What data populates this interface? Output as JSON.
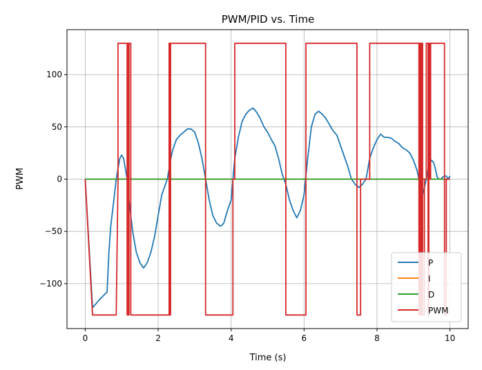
{
  "chart_data": {
    "type": "line",
    "title": "PWM/PID vs. Time",
    "xlabel": "Time (s)",
    "ylabel": "PWM",
    "xlim": [
      -0.5,
      10.5
    ],
    "ylim": [
      -143,
      143
    ],
    "xticks": [
      0,
      2,
      4,
      6,
      8,
      10
    ],
    "yticks": [
      -100,
      -50,
      0,
      50,
      100
    ],
    "xtick_labels": [
      "0",
      "2",
      "4",
      "6",
      "8",
      "10"
    ],
    "ytick_labels": [
      "−100",
      "−50",
      "0",
      "50",
      "100"
    ],
    "grid": true,
    "legend_position": "lower-right",
    "series": [
      {
        "name": "P",
        "color": "#1f77b4",
        "x": [
          0,
          0.2,
          0.4,
          0.6,
          0.65,
          0.7,
          0.8,
          0.85,
          0.9,
          0.95,
          1.0,
          1.05,
          1.1,
          1.15,
          1.2,
          1.3,
          1.4,
          1.5,
          1.6,
          1.7,
          1.75,
          1.8,
          1.9,
          2.0,
          2.1,
          2.2,
          2.25,
          2.3,
          2.35,
          2.4,
          2.5,
          2.6,
          2.7,
          2.8,
          2.9,
          3.0,
          3.1,
          3.2,
          3.3,
          3.4,
          3.5,
          3.6,
          3.7,
          3.75,
          3.8,
          3.9,
          4.0,
          4.05,
          4.1,
          4.2,
          4.3,
          4.4,
          4.5,
          4.6,
          4.7,
          4.8,
          4.9,
          5.0,
          5.1,
          5.2,
          5.3,
          5.4,
          5.5,
          5.6,
          5.7,
          5.8,
          5.9,
          6.0,
          6.1,
          6.2,
          6.3,
          6.4,
          6.5,
          6.6,
          6.7,
          6.8,
          6.9,
          7.0,
          7.1,
          7.2,
          7.3,
          7.4,
          7.5,
          7.6,
          7.7,
          7.8,
          7.9,
          8.0,
          8.1,
          8.2,
          8.3,
          8.4,
          8.5,
          8.6,
          8.7,
          8.8,
          8.9,
          9.0,
          9.1,
          9.15,
          9.2,
          9.25,
          9.3,
          9.35,
          9.4,
          9.45,
          9.5,
          9.55,
          9.6,
          9.65,
          9.7,
          9.75,
          9.8,
          9.85,
          9.9,
          9.95,
          10.0
        ],
        "y": [
          0,
          -123,
          -115,
          -108,
          -70,
          -45,
          -15,
          0,
          10,
          20,
          23,
          20,
          10,
          0,
          -20,
          -50,
          -70,
          -80,
          -85,
          -80,
          -75,
          -70,
          -55,
          -35,
          -15,
          -5,
          0,
          10,
          20,
          28,
          38,
          42,
          45,
          48,
          48,
          45,
          35,
          20,
          0,
          -20,
          -35,
          -42,
          -45,
          -44,
          -42,
          -30,
          -20,
          0,
          20,
          40,
          55,
          62,
          66,
          68,
          64,
          58,
          50,
          45,
          38,
          32,
          20,
          5,
          -5,
          -20,
          -30,
          -37,
          -30,
          -15,
          20,
          50,
          62,
          65,
          62,
          58,
          52,
          46,
          42,
          32,
          22,
          12,
          0,
          -5,
          -8,
          -5,
          0,
          20,
          30,
          38,
          43,
          40,
          40,
          39,
          36,
          34,
          30,
          28,
          25,
          18,
          8,
          0,
          -10,
          -15,
          -8,
          0,
          10,
          16,
          18,
          16,
          10,
          2,
          0,
          0,
          2,
          3,
          3,
          0,
          3
        ]
      },
      {
        "name": "I",
        "color": "#ff7f0e",
        "x": [
          0,
          10
        ],
        "y": [
          0,
          0
        ]
      },
      {
        "name": "D",
        "color": "#2ca02c",
        "x": [
          0,
          10
        ],
        "y": [
          0,
          0
        ]
      },
      {
        "name": "PWM",
        "color": "#d62728",
        "x": [
          0,
          0.2,
          0.85,
          0.9,
          0.9,
          1.15,
          1.15,
          1.17,
          1.17,
          1.19,
          1.19,
          1.2,
          1.2,
          1.25,
          1.25,
          2.3,
          2.3,
          2.32,
          2.32,
          2.34,
          2.34,
          2.35,
          2.35,
          3.3,
          3.3,
          4.05,
          4.05,
          4.1,
          4.1,
          5.5,
          5.5,
          5.55,
          5.55,
          6.05,
          6.05,
          7.45,
          7.45,
          7.55,
          7.55,
          7.8,
          7.8,
          9.15,
          9.15,
          9.17,
          9.17,
          9.2,
          9.2,
          9.22,
          9.22,
          9.25,
          9.25,
          9.3,
          9.3,
          9.35,
          9.35,
          9.4,
          9.4,
          9.42,
          9.42,
          9.45,
          9.45,
          9.47,
          9.47,
          9.5,
          9.5,
          9.55,
          9.55,
          9.85,
          9.85,
          9.9,
          9.9,
          9.95,
          9.95,
          10.0
        ],
        "y": [
          0,
          -130,
          -130,
          0,
          130,
          130,
          -130,
          -130,
          130,
          130,
          -130,
          -130,
          130,
          130,
          -130,
          -130,
          130,
          130,
          -130,
          -130,
          130,
          130,
          130,
          130,
          -130,
          -130,
          0,
          0,
          130,
          130,
          -130,
          -130,
          -130,
          -130,
          130,
          130,
          -130,
          -130,
          0,
          0,
          130,
          130,
          -130,
          -130,
          130,
          130,
          -130,
          -130,
          130,
          130,
          -130,
          -130,
          0,
          0,
          130,
          130,
          -130,
          -130,
          130,
          130,
          0,
          0,
          130,
          130,
          130,
          130,
          130,
          130,
          -130,
          -130,
          0,
          0,
          0,
          0
        ]
      }
    ]
  }
}
